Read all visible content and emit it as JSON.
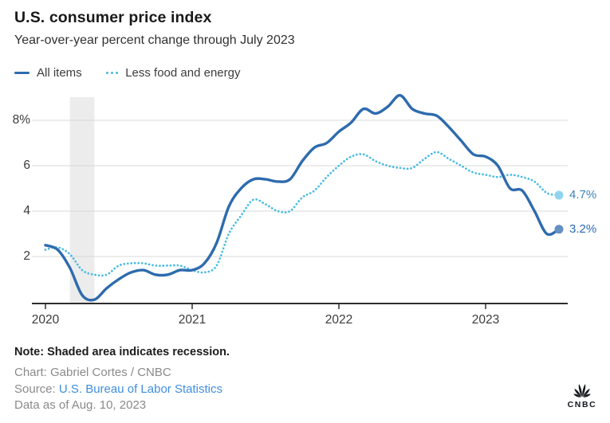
{
  "header": {
    "title": "U.S. consumer price index",
    "subtitle": "Year-over-year percent change through July 2023"
  },
  "legend": [
    {
      "label": "All items",
      "color": "#2e6bad",
      "style": "solid"
    },
    {
      "label": "Less food and energy",
      "color": "#48bbe2",
      "style": "dotted"
    }
  ],
  "chart_data": {
    "type": "line",
    "title": "U.S. consumer price index",
    "subtitle": "Year-over-year percent change through July 2023",
    "x_unit": "month",
    "x_start": "2020-01",
    "x_end": "2023-07",
    "x_tick_labels": [
      "2020",
      "2021",
      "2022",
      "2023"
    ],
    "y_ticks": [
      2,
      4,
      6,
      8
    ],
    "y_tick_labels": [
      "8%",
      "6",
      "4",
      "2"
    ],
    "ylim": [
      0,
      9.2
    ],
    "grid": "horizontal",
    "legend_position": "top-left",
    "recession_band": {
      "start": "2020-03",
      "end": "2020-05"
    },
    "series": [
      {
        "name": "All items",
        "style": "solid",
        "color": "#2e6bad",
        "end_dot_color": "#6590c3",
        "end_label": "3.2%",
        "values": [
          2.5,
          2.3,
          1.5,
          0.3,
          0.1,
          0.6,
          1.0,
          1.3,
          1.4,
          1.2,
          1.2,
          1.4,
          1.4,
          1.7,
          2.6,
          4.2,
          5.0,
          5.4,
          5.4,
          5.3,
          5.4,
          6.2,
          6.8,
          7.0,
          7.5,
          7.9,
          8.5,
          8.3,
          8.6,
          9.1,
          8.5,
          8.3,
          8.2,
          7.7,
          7.1,
          6.5,
          6.4,
          6.0,
          5.0,
          4.9,
          4.0,
          3.0,
          3.2
        ]
      },
      {
        "name": "Less food and energy",
        "style": "dotted",
        "color": "#48bbe2",
        "end_dot_color": "#92d4f0",
        "end_label": "4.7%",
        "values": [
          2.3,
          2.4,
          2.1,
          1.4,
          1.2,
          1.2,
          1.6,
          1.7,
          1.7,
          1.6,
          1.6,
          1.6,
          1.4,
          1.3,
          1.6,
          3.0,
          3.8,
          4.5,
          4.3,
          4.0,
          4.0,
          4.6,
          4.9,
          5.5,
          6.0,
          6.4,
          6.5,
          6.2,
          6.0,
          5.9,
          5.9,
          6.3,
          6.6,
          6.3,
          6.0,
          5.7,
          5.6,
          5.5,
          5.6,
          5.5,
          5.3,
          4.8,
          4.7
        ]
      }
    ],
    "colors": {
      "gridline": "#d9d9d9",
      "axis": "#2d2d2d",
      "recession_band": "#ececec"
    }
  },
  "footer": {
    "note": "Note: Shaded area indicates recession.",
    "credit": "Chart: Gabriel Cortes / CNBC",
    "source_label": "Source: ",
    "source_link": "U.S. Bureau of Labor Statistics",
    "data_as_of": "Data as of Aug. 10, 2023",
    "logo_text": "CNBC"
  }
}
